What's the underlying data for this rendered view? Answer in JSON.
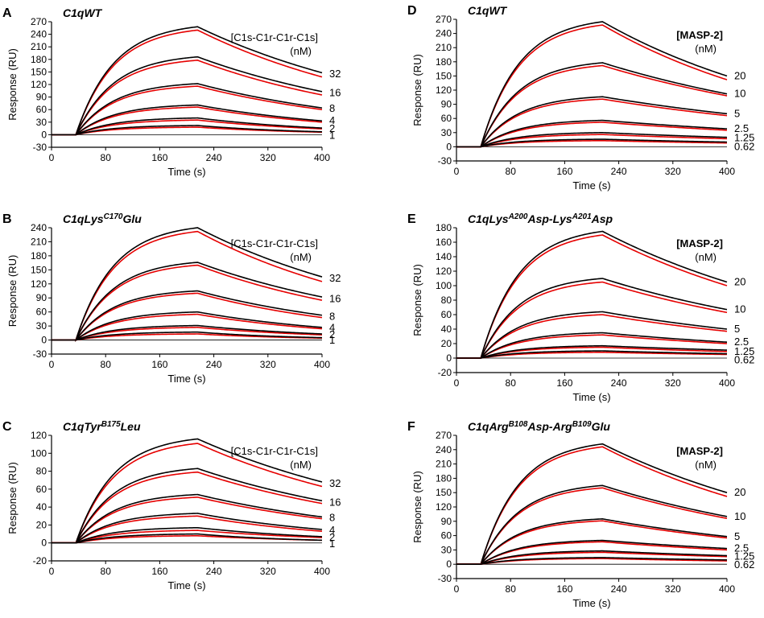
{
  "x_label": "Time (s)",
  "y_label": "Response (RU)",
  "colors": {
    "data": "#000000",
    "fit": "#e60000"
  },
  "chart_data": [
    {
      "type": "line",
      "panel": "A",
      "title_parts": [
        [
          "C1qWT",
          ""
        ]
      ],
      "legend_line1": "[C1s-C1r-C1r-C1s]",
      "legend_line2": "(nM)",
      "xlim": [
        0,
        400
      ],
      "xticks": [
        0,
        80,
        160,
        240,
        320,
        400
      ],
      "ylim": [
        -30,
        270
      ],
      "yticks": [
        -30,
        0,
        30,
        60,
        90,
        120,
        150,
        180,
        210,
        240,
        270
      ],
      "assoc_start": 36,
      "dissoc_start": 216,
      "series": [
        {
          "name": "32",
          "peak": 258,
          "end": 148,
          "fit_peak": 250,
          "fit_end": 138,
          "label_y": 145
        },
        {
          "name": "16",
          "peak": 186,
          "end": 103,
          "fit_peak": 178,
          "fit_end": 95,
          "label_y": 100
        },
        {
          "name": "8",
          "peak": 122,
          "end": 64,
          "fit_peak": 116,
          "fit_end": 60,
          "label_y": 62
        },
        {
          "name": "4",
          "peak": 71,
          "end": 33,
          "fit_peak": 66,
          "fit_end": 30,
          "label_y": 33
        },
        {
          "name": "2",
          "peak": 40,
          "end": 16,
          "fit_peak": 35,
          "fit_end": 14,
          "label_y": 14
        },
        {
          "name": "1",
          "peak": 22,
          "end": 7,
          "fit_peak": 18,
          "fit_end": 6,
          "label_y": -2
        }
      ]
    },
    {
      "type": "line",
      "panel": "B",
      "title_parts": [
        [
          "C1qLys",
          ""
        ],
        [
          "C170",
          "sup"
        ],
        [
          "Glu",
          ""
        ]
      ],
      "legend_line1": "[C1s-C1r-C1r-C1s]",
      "legend_line2": "(nM)",
      "xlim": [
        0,
        400
      ],
      "xticks": [
        0,
        80,
        160,
        240,
        320,
        400
      ],
      "ylim": [
        -30,
        240
      ],
      "yticks": [
        -30,
        0,
        30,
        60,
        90,
        120,
        150,
        180,
        210,
        240
      ],
      "assoc_start": 36,
      "dissoc_start": 216,
      "series": [
        {
          "name": "32",
          "peak": 240,
          "end": 135,
          "fit_peak": 232,
          "fit_end": 125,
          "label_y": 132
        },
        {
          "name": "16",
          "peak": 166,
          "end": 92,
          "fit_peak": 160,
          "fit_end": 85,
          "label_y": 88
        },
        {
          "name": "8",
          "peak": 105,
          "end": 53,
          "fit_peak": 100,
          "fit_end": 48,
          "label_y": 50
        },
        {
          "name": "4",
          "peak": 60,
          "end": 27,
          "fit_peak": 55,
          "fit_end": 24,
          "label_y": 26
        },
        {
          "name": "2",
          "peak": 31,
          "end": 13,
          "fit_peak": 27,
          "fit_end": 11,
          "label_y": 11
        },
        {
          "name": "1",
          "peak": 17,
          "end": 5,
          "fit_peak": 13,
          "fit_end": 4,
          "label_y": -1
        }
      ]
    },
    {
      "type": "line",
      "panel": "C",
      "title_parts": [
        [
          "C1qTyr",
          ""
        ],
        [
          "B175",
          "sup"
        ],
        [
          "Leu",
          ""
        ]
      ],
      "legend_line1": "[C1s-C1r-C1r-C1s]",
      "legend_line2": "(nM)",
      "xlim": [
        0,
        400
      ],
      "xticks": [
        0,
        80,
        160,
        240,
        320,
        400
      ],
      "ylim": [
        -20,
        120
      ],
      "yticks": [
        -20,
        0,
        20,
        40,
        60,
        80,
        100,
        120
      ],
      "assoc_start": 36,
      "dissoc_start": 216,
      "series": [
        {
          "name": "32",
          "peak": 116,
          "end": 68,
          "fit_peak": 111,
          "fit_end": 63,
          "label_y": 66
        },
        {
          "name": "16",
          "peak": 83,
          "end": 47,
          "fit_peak": 79,
          "fit_end": 44,
          "label_y": 45
        },
        {
          "name": "8",
          "peak": 54,
          "end": 29,
          "fit_peak": 51,
          "fit_end": 27,
          "label_y": 28
        },
        {
          "name": "4",
          "peak": 33,
          "end": 15,
          "fit_peak": 30,
          "fit_end": 13,
          "label_y": 14
        },
        {
          "name": "2",
          "peak": 17,
          "end": 7,
          "fit_peak": 14,
          "fit_end": 6,
          "label_y": 6
        },
        {
          "name": "1",
          "peak": 10,
          "end": 3,
          "fit_peak": 8,
          "fit_end": 3,
          "label_y": -1
        }
      ]
    },
    {
      "type": "line",
      "panel": "D",
      "title_parts": [
        [
          "C1qWT",
          ""
        ]
      ],
      "legend_line1": "[MASP-2]",
      "legend_line2": "(nM)",
      "xlim": [
        0,
        400
      ],
      "xticks": [
        0,
        80,
        160,
        240,
        320,
        400
      ],
      "ylim": [
        -30,
        270
      ],
      "yticks": [
        -30,
        0,
        30,
        60,
        90,
        120,
        150,
        180,
        210,
        240,
        270
      ],
      "assoc_start": 36,
      "dissoc_start": 216,
      "series": [
        {
          "name": "20",
          "peak": 265,
          "end": 150,
          "fit_peak": 258,
          "fit_end": 142,
          "label_y": 150
        },
        {
          "name": "10",
          "peak": 178,
          "end": 112,
          "fit_peak": 172,
          "fit_end": 108,
          "label_y": 112
        },
        {
          "name": "5",
          "peak": 106,
          "end": 70,
          "fit_peak": 101,
          "fit_end": 66,
          "label_y": 70
        },
        {
          "name": "2.5",
          "peak": 56,
          "end": 38,
          "fit_peak": 52,
          "fit_end": 35,
          "label_y": 38
        },
        {
          "name": "1.25",
          "peak": 30,
          "end": 20,
          "fit_peak": 26,
          "fit_end": 17,
          "label_y": 19
        },
        {
          "name": "0.62",
          "peak": 16,
          "end": 10,
          "fit_peak": 13,
          "fit_end": 8,
          "label_y": 0
        }
      ]
    },
    {
      "type": "line",
      "panel": "E",
      "title_parts": [
        [
          "C1qLys",
          ""
        ],
        [
          "A200",
          "sup"
        ],
        [
          "Asp-Lys",
          ""
        ],
        [
          "A201",
          "sup"
        ],
        [
          "Asp",
          ""
        ]
      ],
      "legend_line1": "[MASP-2]",
      "legend_line2": "(nM)",
      "xlim": [
        0,
        400
      ],
      "xticks": [
        0,
        80,
        160,
        240,
        320,
        400
      ],
      "ylim": [
        -20,
        180
      ],
      "yticks": [
        -20,
        0,
        20,
        40,
        60,
        80,
        100,
        120,
        140,
        160,
        180
      ],
      "assoc_start": 36,
      "dissoc_start": 216,
      "series": [
        {
          "name": "20",
          "peak": 175,
          "end": 105,
          "fit_peak": 170,
          "fit_end": 100,
          "label_y": 105
        },
        {
          "name": "10",
          "peak": 110,
          "end": 67,
          "fit_peak": 105,
          "fit_end": 63,
          "label_y": 67
        },
        {
          "name": "5",
          "peak": 64,
          "end": 40,
          "fit_peak": 60,
          "fit_end": 37,
          "label_y": 40
        },
        {
          "name": "2.5",
          "peak": 35,
          "end": 22,
          "fit_peak": 32,
          "fit_end": 20,
          "label_y": 22
        },
        {
          "name": "1.25",
          "peak": 17,
          "end": 11,
          "fit_peak": 15,
          "fit_end": 9,
          "label_y": 9
        },
        {
          "name": "0.62",
          "peak": 10,
          "end": 6,
          "fit_peak": 8,
          "fit_end": 5,
          "label_y": -3
        }
      ]
    },
    {
      "type": "line",
      "panel": "F",
      "title_parts": [
        [
          "C1qArg",
          ""
        ],
        [
          "B108",
          "sup"
        ],
        [
          "Asp-Arg",
          ""
        ],
        [
          "B109",
          "sup"
        ],
        [
          "Glu",
          ""
        ]
      ],
      "legend_line1": "[MASP-2]",
      "legend_line2": "(nM)",
      "xlim": [
        0,
        400
      ],
      "xticks": [
        0,
        80,
        160,
        240,
        320,
        400
      ],
      "ylim": [
        -30,
        270
      ],
      "yticks": [
        -30,
        0,
        30,
        60,
        90,
        120,
        150,
        180,
        210,
        240,
        270
      ],
      "assoc_start": 36,
      "dissoc_start": 216,
      "series": [
        {
          "name": "20",
          "peak": 252,
          "end": 150,
          "fit_peak": 246,
          "fit_end": 142,
          "label_y": 150
        },
        {
          "name": "10",
          "peak": 165,
          "end": 100,
          "fit_peak": 160,
          "fit_end": 96,
          "label_y": 100
        },
        {
          "name": "5",
          "peak": 95,
          "end": 58,
          "fit_peak": 91,
          "fit_end": 55,
          "label_y": 58
        },
        {
          "name": "2.5",
          "peak": 50,
          "end": 33,
          "fit_peak": 47,
          "fit_end": 30,
          "label_y": 33
        },
        {
          "name": "1.25",
          "peak": 28,
          "end": 18,
          "fit_peak": 25,
          "fit_end": 16,
          "label_y": 16
        },
        {
          "name": "0.62",
          "peak": 14,
          "end": 9,
          "fit_peak": 12,
          "fit_end": 7,
          "label_y": -1
        }
      ]
    }
  ]
}
